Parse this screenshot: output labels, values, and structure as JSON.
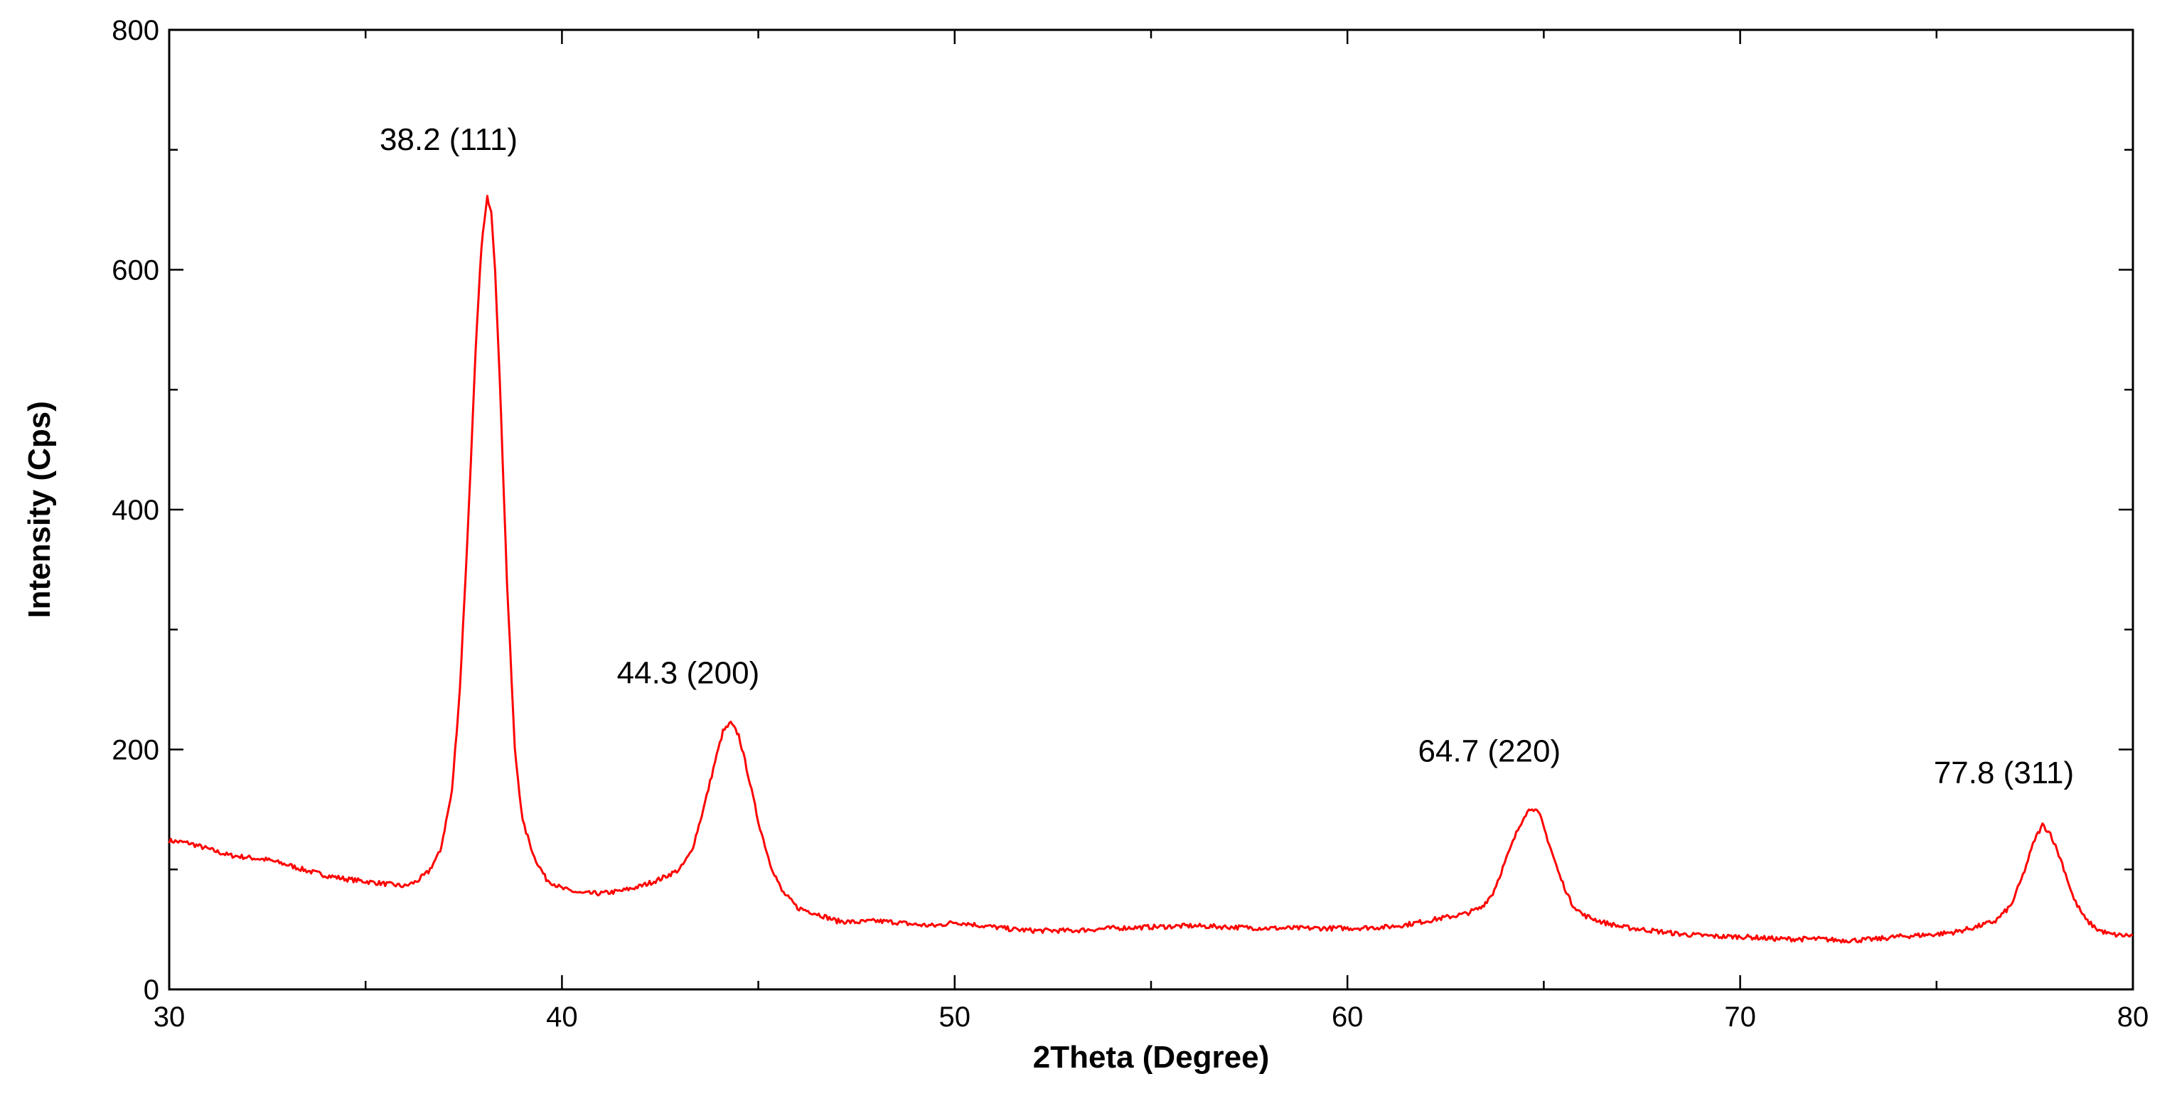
{
  "chart_data": {
    "type": "line",
    "title": "",
    "xlabel": "2Theta (Degree)",
    "ylabel": "Intensity (Cps)",
    "xlim": [
      30,
      80
    ],
    "ylim": [
      0,
      800
    ],
    "x_ticks": [
      30,
      40,
      50,
      60,
      70,
      80
    ],
    "y_ticks": [
      0,
      200,
      400,
      600,
      800
    ],
    "grid": false,
    "legend": "none",
    "line_color": "#ff0000",
    "series": [
      {
        "x": [
          30.0,
          30.5,
          31.0,
          31.5,
          32.0,
          32.5,
          33.0,
          33.5,
          34.0,
          34.5,
          35.0,
          35.5,
          36.0,
          36.3,
          36.6,
          36.9,
          37.2,
          37.4,
          37.6,
          37.8,
          37.95,
          38.1,
          38.2,
          38.3,
          38.45,
          38.6,
          38.8,
          39.0,
          39.3,
          39.6,
          40.0,
          40.5,
          41.0,
          41.5,
          42.0,
          42.5,
          43.0,
          43.3,
          43.6,
          43.9,
          44.1,
          44.3,
          44.5,
          44.7,
          45.0,
          45.3,
          45.6,
          46.0,
          46.5,
          47.0,
          47.5,
          48.0,
          48.5,
          49.0,
          49.5,
          50.0,
          50.3,
          50.7,
          51.0,
          51.5,
          52.0,
          53.0,
          54.0,
          55.0,
          56.0,
          57.0,
          58.0,
          59.0,
          60.0,
          61.0,
          61.5,
          62.0,
          62.5,
          63.0,
          63.4,
          63.7,
          64.0,
          64.3,
          64.5,
          64.7,
          64.9,
          65.1,
          65.4,
          65.7,
          66.0,
          66.5,
          67.0,
          67.5,
          68.0,
          68.5,
          69.0,
          69.5,
          70.0,
          70.5,
          71.0,
          71.5,
          72.0,
          72.5,
          73.0,
          73.5,
          74.0,
          74.5,
          75.0,
          75.5,
          76.0,
          76.5,
          76.9,
          77.2,
          77.5,
          77.7,
          77.9,
          78.2,
          78.5,
          78.8,
          79.1,
          79.4,
          79.7,
          80.0
        ],
        "y": [
          124,
          122,
          117,
          112,
          110,
          108,
          104,
          99,
          95,
          92,
          90,
          88,
          86,
          90,
          98,
          115,
          165,
          250,
          380,
          530,
          620,
          660,
          650,
          600,
          480,
          340,
          200,
          140,
          110,
          92,
          84,
          80,
          80,
          82,
          86,
          92,
          100,
          115,
          150,
          190,
          215,
          222,
          212,
          185,
          140,
          105,
          82,
          68,
          63,
          57,
          56,
          57,
          56,
          54,
          53,
          56,
          55,
          53,
          52,
          50,
          49,
          49,
          51,
          52,
          53,
          52,
          51,
          51,
          51,
          52,
          54,
          57,
          60,
          63,
          68,
          80,
          105,
          130,
          145,
          152,
          145,
          125,
          95,
          72,
          62,
          56,
          52,
          50,
          48,
          46,
          45,
          44,
          44,
          43,
          42,
          42,
          42,
          41,
          41,
          42,
          44,
          45,
          46,
          48,
          52,
          57,
          70,
          95,
          125,
          137,
          130,
          105,
          75,
          58,
          50,
          46,
          45,
          45
        ]
      }
    ],
    "annotations": [
      {
        "text": "38.2 (111)",
        "x": 38.2,
        "y": 700
      },
      {
        "text": "44.3 (200)",
        "x": 44.3,
        "y": 255
      },
      {
        "text": "64.7 (220)",
        "x": 64.7,
        "y": 190
      },
      {
        "text": "77.8 (311)",
        "x": 77.8,
        "y": 172
      }
    ]
  }
}
